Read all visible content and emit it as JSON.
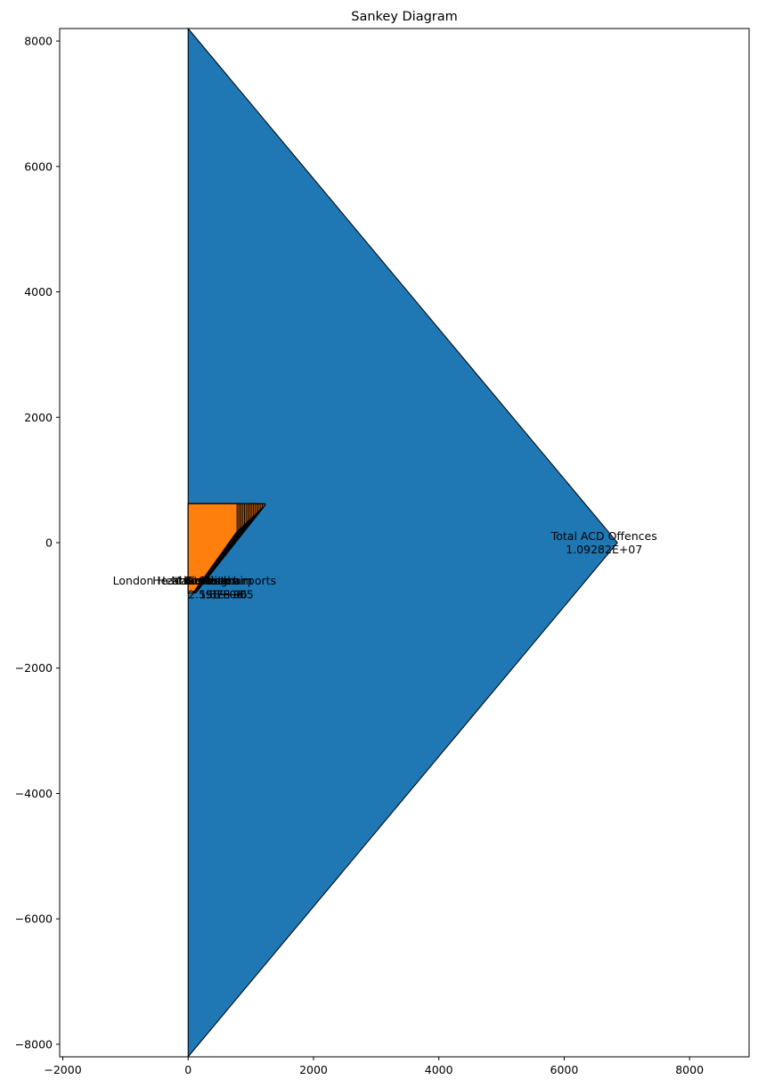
{
  "chart_data": {
    "type": "sankey",
    "title": "Sankey Diagram",
    "xlim": [
      -2050,
      8950
    ],
    "ylim": [
      -8200,
      8200
    ],
    "xticks": [
      -2000,
      0,
      2000,
      4000,
      6000,
      8000
    ],
    "yticks": [
      -8000,
      -6000,
      -4000,
      -2000,
      0,
      2000,
      4000,
      6000,
      8000
    ],
    "xtick_labels": [
      "−2000",
      "0",
      "2000",
      "4000",
      "6000",
      "8000"
    ],
    "ytick_labels": [
      "−8000",
      "−6000",
      "−4000",
      "−2000",
      "0",
      "2000",
      "4000",
      "6000",
      "8000"
    ],
    "grid": false,
    "colors": {
      "main_flow": "#1f77b4",
      "inflows": "#ff7f0e",
      "edge": "#000000"
    },
    "main_flow": {
      "label": "Total ACD Offences",
      "value_label": "1.09282E+07",
      "x0": 0,
      "y_top": 8200,
      "y_bottom": -8200,
      "tip": [
        6850,
        0
      ]
    },
    "inflows": {
      "x0": 0,
      "y_top": 620,
      "y_bottom": -800,
      "count": 20,
      "right_first": 780,
      "right_last": 1230,
      "top_first": 180,
      "top_last": 600,
      "label_y": -610,
      "value_y": -830,
      "labels": [
        {
          "text": "London Heathrow",
          "x": -420
        },
        {
          "text": "Heathrow",
          "x": -140
        },
        {
          "text": "Manchester",
          "x": 250
        },
        {
          "text": "Gatwick",
          "x": 310
        },
        {
          "text": "Stansted",
          "x": 370
        },
        {
          "text": "Birmingham",
          "x": 480
        },
        {
          "text": "Luton",
          "x": 560
        },
        {
          "text": "Other airports",
          "x": 780
        }
      ],
      "value_texts": [
        {
          "text": "2.55E+06",
          "x": 440
        },
        {
          "text": "1.3E+06",
          "x": 560
        },
        {
          "text": "9.7E+05",
          "x": 660
        }
      ]
    }
  }
}
